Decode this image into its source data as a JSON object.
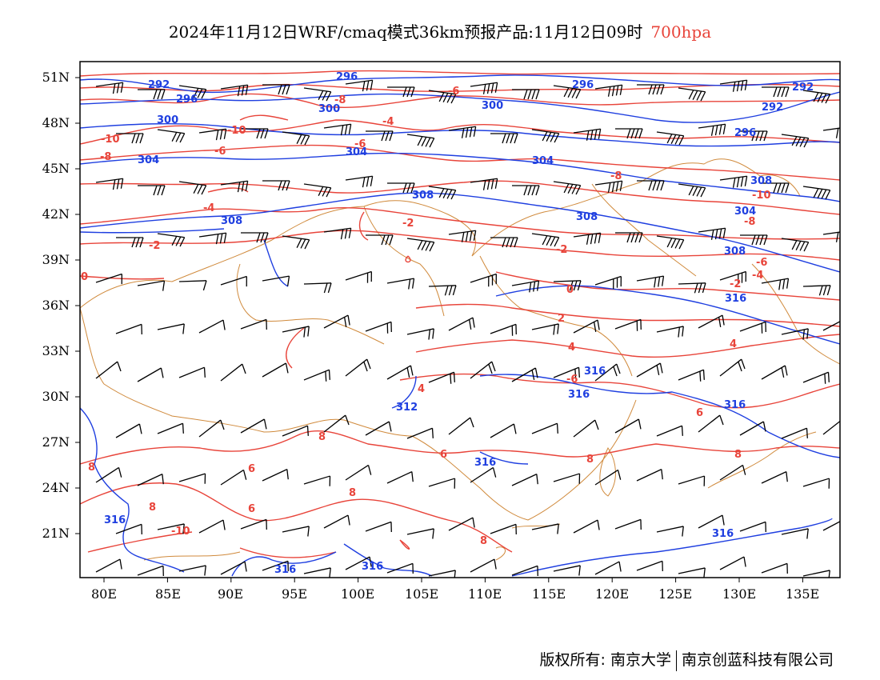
{
  "title": {
    "main": "2024年11月12日WRF/cmaq模式36km预报产品:11月12日09时",
    "level": "700hpa"
  },
  "colors": {
    "height_contour": "#1f3fe0",
    "temperature_contour": "#e8443a",
    "border": "#d08a3c",
    "wind_barb": "#000000"
  },
  "axes": {
    "lat_labels": [
      "51N",
      "48N",
      "45N",
      "42N",
      "39N",
      "36N",
      "33N",
      "30N",
      "27N",
      "24N",
      "21N"
    ],
    "lon_labels": [
      "80E",
      "85E",
      "90E",
      "95E",
      "100E",
      "105E",
      "110E",
      "115E",
      "120E",
      "125E",
      "130E",
      "135E"
    ]
  },
  "chart_data": {
    "type": "map",
    "height_contour_labels": [
      "292",
      "296",
      "300",
      "304",
      "308",
      "312",
      "316"
    ],
    "temperature_contour_labels": [
      "-10",
      "-8",
      "-6",
      "-4",
      "-2",
      "0",
      "2",
      "4",
      "6",
      "8"
    ]
  },
  "copyright": {
    "owner1": "版权所有: 南京大学",
    "owner2": "南京创蓝科技有限公司"
  }
}
